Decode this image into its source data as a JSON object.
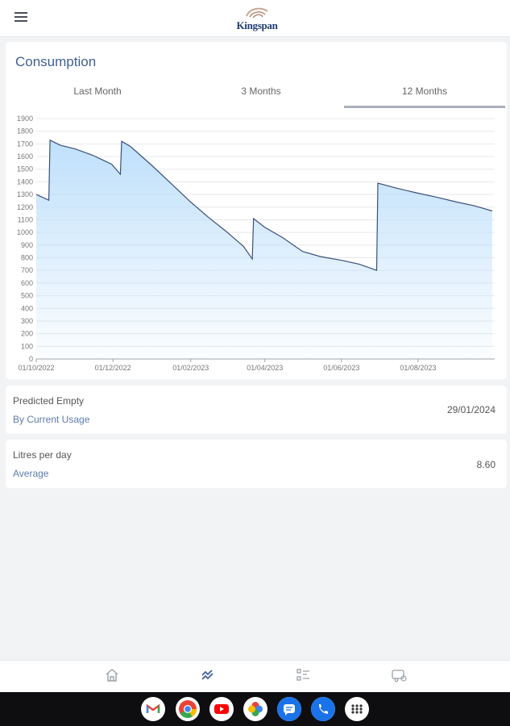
{
  "header": {
    "logo_text": "Kingspan"
  },
  "consumption": {
    "title": "Consumption",
    "tabs": [
      {
        "label": "Last Month",
        "active": false
      },
      {
        "label": "3 Months",
        "active": false
      },
      {
        "label": "12 Months",
        "active": true
      }
    ]
  },
  "chart_data": {
    "type": "area",
    "title": "",
    "xlabel": "",
    "ylabel": "",
    "ylim": [
      0,
      1900
    ],
    "y_ticks": [
      "0",
      "100",
      "200",
      "300",
      "400",
      "500",
      "600",
      "700",
      "800",
      "900",
      "1000",
      "1100",
      "1200",
      "1300",
      "1400",
      "1500",
      "1600",
      "1700",
      "1800",
      "1900"
    ],
    "x_ticks": [
      "01/10/2022",
      "01/12/2022",
      "01/02/2023",
      "01/04/2023",
      "01/06/2023",
      "01/08/2023"
    ],
    "grid": true,
    "series": [
      {
        "color": "#3a4f7a",
        "fill": "#bfe0fb",
        "points": [
          [
            "2022-10-01",
            1300
          ],
          [
            "2022-10-11",
            1255
          ],
          [
            "2022-10-12",
            1730
          ],
          [
            "2022-10-20",
            1690
          ],
          [
            "2022-11-01",
            1660
          ],
          [
            "2022-11-15",
            1610
          ],
          [
            "2022-11-30",
            1540
          ],
          [
            "2022-12-07",
            1460
          ],
          [
            "2022-12-08",
            1720
          ],
          [
            "2022-12-15",
            1680
          ],
          [
            "2023-01-01",
            1530
          ],
          [
            "2023-01-15",
            1400
          ],
          [
            "2023-02-01",
            1240
          ],
          [
            "2023-02-15",
            1120
          ],
          [
            "2023-03-01",
            1010
          ],
          [
            "2023-03-15",
            890
          ],
          [
            "2023-03-22",
            790
          ],
          [
            "2023-03-23",
            1110
          ],
          [
            "2023-04-01",
            1040
          ],
          [
            "2023-04-15",
            960
          ],
          [
            "2023-05-01",
            850
          ],
          [
            "2023-05-15",
            810
          ],
          [
            "2023-06-01",
            780
          ],
          [
            "2023-06-15",
            750
          ],
          [
            "2023-06-29",
            700
          ],
          [
            "2023-06-30",
            1390
          ],
          [
            "2023-07-15",
            1350
          ],
          [
            "2023-08-01",
            1310
          ],
          [
            "2023-08-15",
            1280
          ],
          [
            "2023-09-01",
            1240
          ],
          [
            "2023-09-15",
            1210
          ],
          [
            "2023-09-29",
            1170
          ]
        ]
      }
    ]
  },
  "predicted_empty": {
    "title": "Predicted Empty",
    "subtitle": "By Current Usage",
    "value": "29/01/2024"
  },
  "litres_per_day": {
    "title": "Litres per day",
    "subtitle": "Average",
    "value": "8.60"
  },
  "colors": {
    "accent": "#3f5f95",
    "line": "#3a4f7a",
    "area_fill": "#bfe0fb",
    "background": "#f2f3f5"
  },
  "bottom_nav": [
    {
      "icon": "home-icon"
    },
    {
      "icon": "consumption-chart-icon",
      "active": true
    },
    {
      "icon": "checklist-icon"
    },
    {
      "icon": "delivery-truck-icon"
    }
  ],
  "taskbar_apps": [
    {
      "icon": "gmail-icon"
    },
    {
      "icon": "chrome-icon"
    },
    {
      "icon": "youtube-icon"
    },
    {
      "icon": "photos-icon"
    },
    {
      "icon": "messages-icon"
    },
    {
      "icon": "phone-icon"
    },
    {
      "icon": "app-drawer-icon"
    }
  ]
}
